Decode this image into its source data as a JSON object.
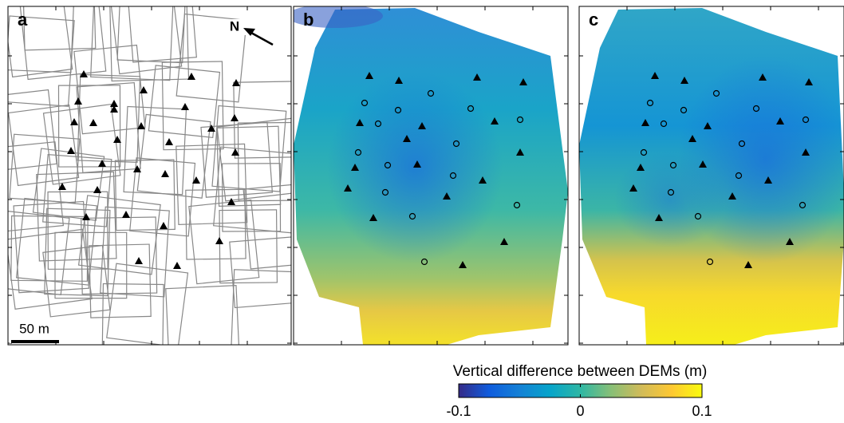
{
  "panels": [
    {
      "label": "a"
    },
    {
      "label": "b"
    },
    {
      "label": "c"
    }
  ],
  "north_label": "N",
  "scale_bar_label": "50 m",
  "colorbar": {
    "label": "Vertical difference between DEMs (m)",
    "lim": [
      -0.1,
      0.1
    ],
    "ticks": [
      -0.1,
      0,
      0.1
    ],
    "colors": [
      "#352a87",
      "#0f5cdd",
      "#1481d6",
      "#06a4ca",
      "#2eb7a4",
      "#87bf77",
      "#d1bb59",
      "#fec832",
      "#f9fb0e"
    ]
  }
}
